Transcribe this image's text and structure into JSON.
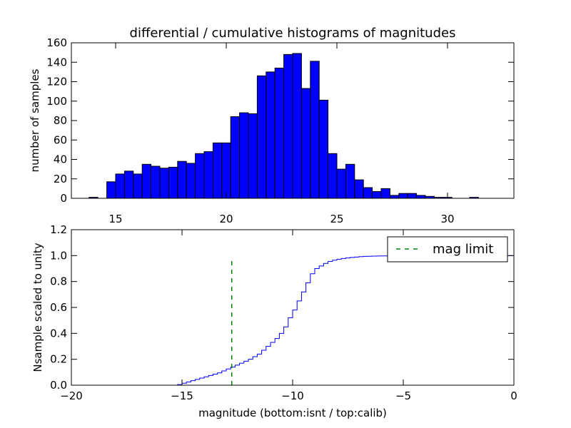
{
  "chart_data": [
    {
      "type": "bar",
      "title": "differential / cumulative histograms of magnitudes",
      "xlabel": "",
      "ylabel": "number of samples",
      "xlim": [
        13,
        33
      ],
      "ylim": [
        0,
        160
      ],
      "xticks": [
        15,
        20,
        25,
        30
      ],
      "yticks": [
        0,
        20,
        40,
        60,
        80,
        100,
        120,
        140,
        160
      ],
      "bin_start": 13.4,
      "bin_width": 0.4,
      "values": [
        0,
        1,
        0,
        17,
        25,
        28,
        25,
        35,
        33,
        31,
        32,
        38,
        36,
        46,
        48,
        57,
        57,
        84,
        88,
        87,
        126,
        130,
        134,
        148,
        149,
        113,
        141,
        101,
        46,
        30,
        35,
        19,
        11,
        7,
        10,
        3,
        5,
        5,
        3,
        2,
        1,
        1,
        0,
        0,
        1,
        0,
        0
      ],
      "color": "#0000ff"
    },
    {
      "type": "line",
      "xlabel": "magnitude (bottom:isnt / top:calib)",
      "ylabel": "Nsample scaled to unity",
      "xlim": [
        -20,
        0
      ],
      "ylim": [
        0.0,
        1.2
      ],
      "xticks": [
        -20,
        -15,
        -10,
        -5,
        0
      ],
      "xtick_labels": [
        "−20",
        "−15",
        "−10",
        "−5",
        "0"
      ],
      "yticks": [
        0.0,
        0.2,
        0.4,
        0.6,
        0.8,
        1.0,
        1.2
      ],
      "ytick_labels": [
        "0.0",
        "0.2",
        "0.4",
        "0.6",
        "0.8",
        "1.0",
        "1.2"
      ],
      "series": [
        {
          "name": "cumulative",
          "step": true,
          "color": "#0000ff",
          "x": [
            -20,
            -15.2,
            -15.0,
            -14.8,
            -14.6,
            -14.4,
            -14.2,
            -14.0,
            -13.8,
            -13.6,
            -13.4,
            -13.2,
            -13.0,
            -12.8,
            -12.6,
            -12.4,
            -12.2,
            -12.0,
            -11.8,
            -11.6,
            -11.4,
            -11.2,
            -11.0,
            -10.8,
            -10.6,
            -10.4,
            -10.2,
            -10.0,
            -9.8,
            -9.6,
            -9.4,
            -9.2,
            -9.0,
            -8.8,
            -8.6,
            -8.4,
            -8.2,
            -8.0,
            -7.8,
            -7.6,
            -7.4,
            -7.2,
            -7.0,
            -6.8,
            -6.6,
            -6.4,
            -6.2,
            -6.0,
            -5.5,
            -5.0,
            -4.0,
            -2.0,
            0.0
          ],
          "y": [
            0.0,
            0.005,
            0.015,
            0.025,
            0.035,
            0.045,
            0.055,
            0.065,
            0.075,
            0.085,
            0.095,
            0.11,
            0.125,
            0.14,
            0.155,
            0.17,
            0.185,
            0.2,
            0.22,
            0.24,
            0.27,
            0.3,
            0.33,
            0.36,
            0.4,
            0.45,
            0.52,
            0.58,
            0.65,
            0.72,
            0.79,
            0.86,
            0.9,
            0.92,
            0.94,
            0.955,
            0.965,
            0.972,
            0.978,
            0.982,
            0.986,
            0.989,
            0.992,
            0.994,
            0.995,
            0.996,
            0.997,
            0.998,
            0.999,
            1.0,
            1.0,
            1.0,
            1.0
          ]
        }
      ],
      "vline": {
        "name": "mag limit",
        "x": -12.75,
        "ymax": 0.97,
        "color": "#008000",
        "style": "dashed"
      },
      "legend": {
        "placement": "top-right",
        "entries": [
          "mag limit"
        ]
      }
    }
  ]
}
